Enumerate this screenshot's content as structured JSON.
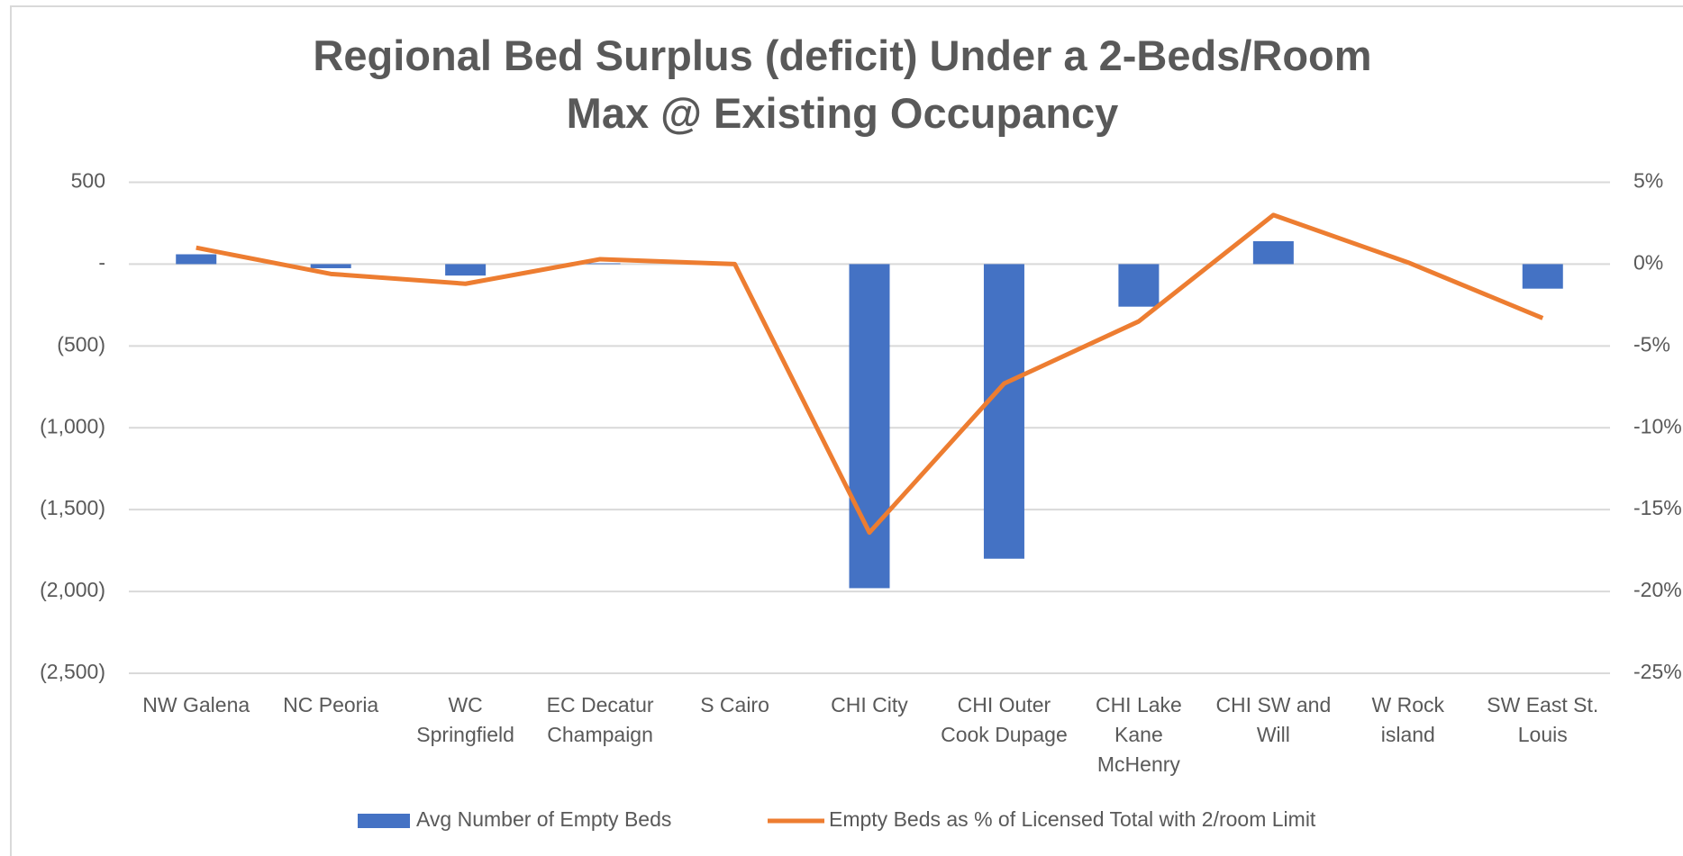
{
  "chart_data": {
    "type": "bar",
    "title": "Regional Bed Surplus (deficit) Under a 2-Beds/Room Max @ Existing Occupancy",
    "categories": [
      "NW Galena",
      "NC Peoria",
      "WC Springfield",
      "EC Decatur Champaign",
      "S Cairo",
      "CHI City",
      "CHI Outer Cook Dupage",
      "CHI Lake Kane McHenry",
      "CHI SW and Will",
      "W Rock island",
      "SW East St. Louis"
    ],
    "series": [
      {
        "name": "Avg Number of Empty Beds",
        "type": "bar",
        "color": "#4472c4",
        "values": [
          60,
          -25,
          -70,
          5,
          0,
          -1980,
          -1800,
          -260,
          140,
          0,
          -150
        ]
      },
      {
        "name": "Empty Beds as % of Licensed Total with 2/room Limit",
        "type": "line",
        "axis": "y2",
        "color": "#ed7d31",
        "values": [
          1.0,
          -0.6,
          -1.2,
          0.3,
          0,
          -16.4,
          -7.3,
          -3.5,
          3.0,
          0.1,
          -3.3
        ]
      }
    ],
    "ylim": [
      -2500,
      500
    ],
    "yticks": [
      {
        "value": -2500,
        "label": "(2,500)"
      },
      {
        "value": -2000,
        "label": "(2,000)"
      },
      {
        "value": -1500,
        "label": "(1,500)"
      },
      {
        "value": -1000,
        "label": "(1,000)"
      },
      {
        "value": -500,
        "label": "(500)"
      },
      {
        "value": 0,
        "label": "-"
      },
      500
    ],
    "y2lim": [
      -25,
      5
    ],
    "y2ticks": [
      {
        "value": -25,
        "label": "-25%"
      },
      {
        "value": -20,
        "label": "-20%"
      },
      {
        "value": -15,
        "label": "-15%"
      },
      {
        "value": -10,
        "label": "-10%"
      },
      {
        "value": -5,
        "label": "-5%"
      },
      {
        "value": 0,
        "label": "0%"
      },
      {
        "value": 5,
        "label": "5%"
      }
    ],
    "grid": true,
    "legend": "bottom"
  }
}
